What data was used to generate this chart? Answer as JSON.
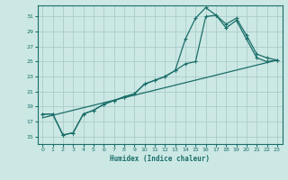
{
  "xlabel": "Humidex (Indice chaleur)",
  "bg_color": "#cce8e4",
  "grid_color": "#aacccc",
  "line_color": "#1a6e6a",
  "xlim": [
    -0.5,
    23.5
  ],
  "ylim": [
    14.0,
    32.5
  ],
  "yticks": [
    15,
    17,
    19,
    21,
    23,
    25,
    27,
    29,
    31
  ],
  "xticks": [
    0,
    1,
    2,
    3,
    4,
    5,
    6,
    7,
    8,
    9,
    10,
    11,
    12,
    13,
    14,
    15,
    16,
    17,
    18,
    19,
    20,
    21,
    22,
    23
  ],
  "curve1_x": [
    0,
    1,
    2,
    3,
    4,
    5,
    6,
    7,
    8,
    9,
    10,
    11,
    12,
    13,
    14,
    15,
    16,
    17,
    18,
    19,
    20,
    21,
    22,
    23
  ],
  "curve1_y": [
    18.0,
    18.0,
    15.2,
    15.5,
    18.0,
    18.5,
    19.3,
    19.8,
    20.3,
    20.7,
    22.0,
    22.5,
    23.0,
    23.8,
    28.0,
    30.8,
    32.2,
    31.2,
    30.0,
    30.8,
    28.5,
    26.0,
    25.5,
    25.2
  ],
  "curve2_x": [
    0,
    1,
    2,
    3,
    4,
    5,
    6,
    7,
    8,
    9,
    10,
    11,
    12,
    13,
    14,
    15,
    16,
    17,
    18,
    19,
    20,
    21,
    22,
    23
  ],
  "curve2_y": [
    18.0,
    18.0,
    15.2,
    15.5,
    18.0,
    18.5,
    19.3,
    19.8,
    20.3,
    20.7,
    22.0,
    22.5,
    23.0,
    23.8,
    24.7,
    25.0,
    31.0,
    31.2,
    29.5,
    30.5,
    28.0,
    25.5,
    25.0,
    25.2
  ],
  "line_x": [
    0,
    23
  ],
  "line_y": [
    17.5,
    25.2
  ]
}
